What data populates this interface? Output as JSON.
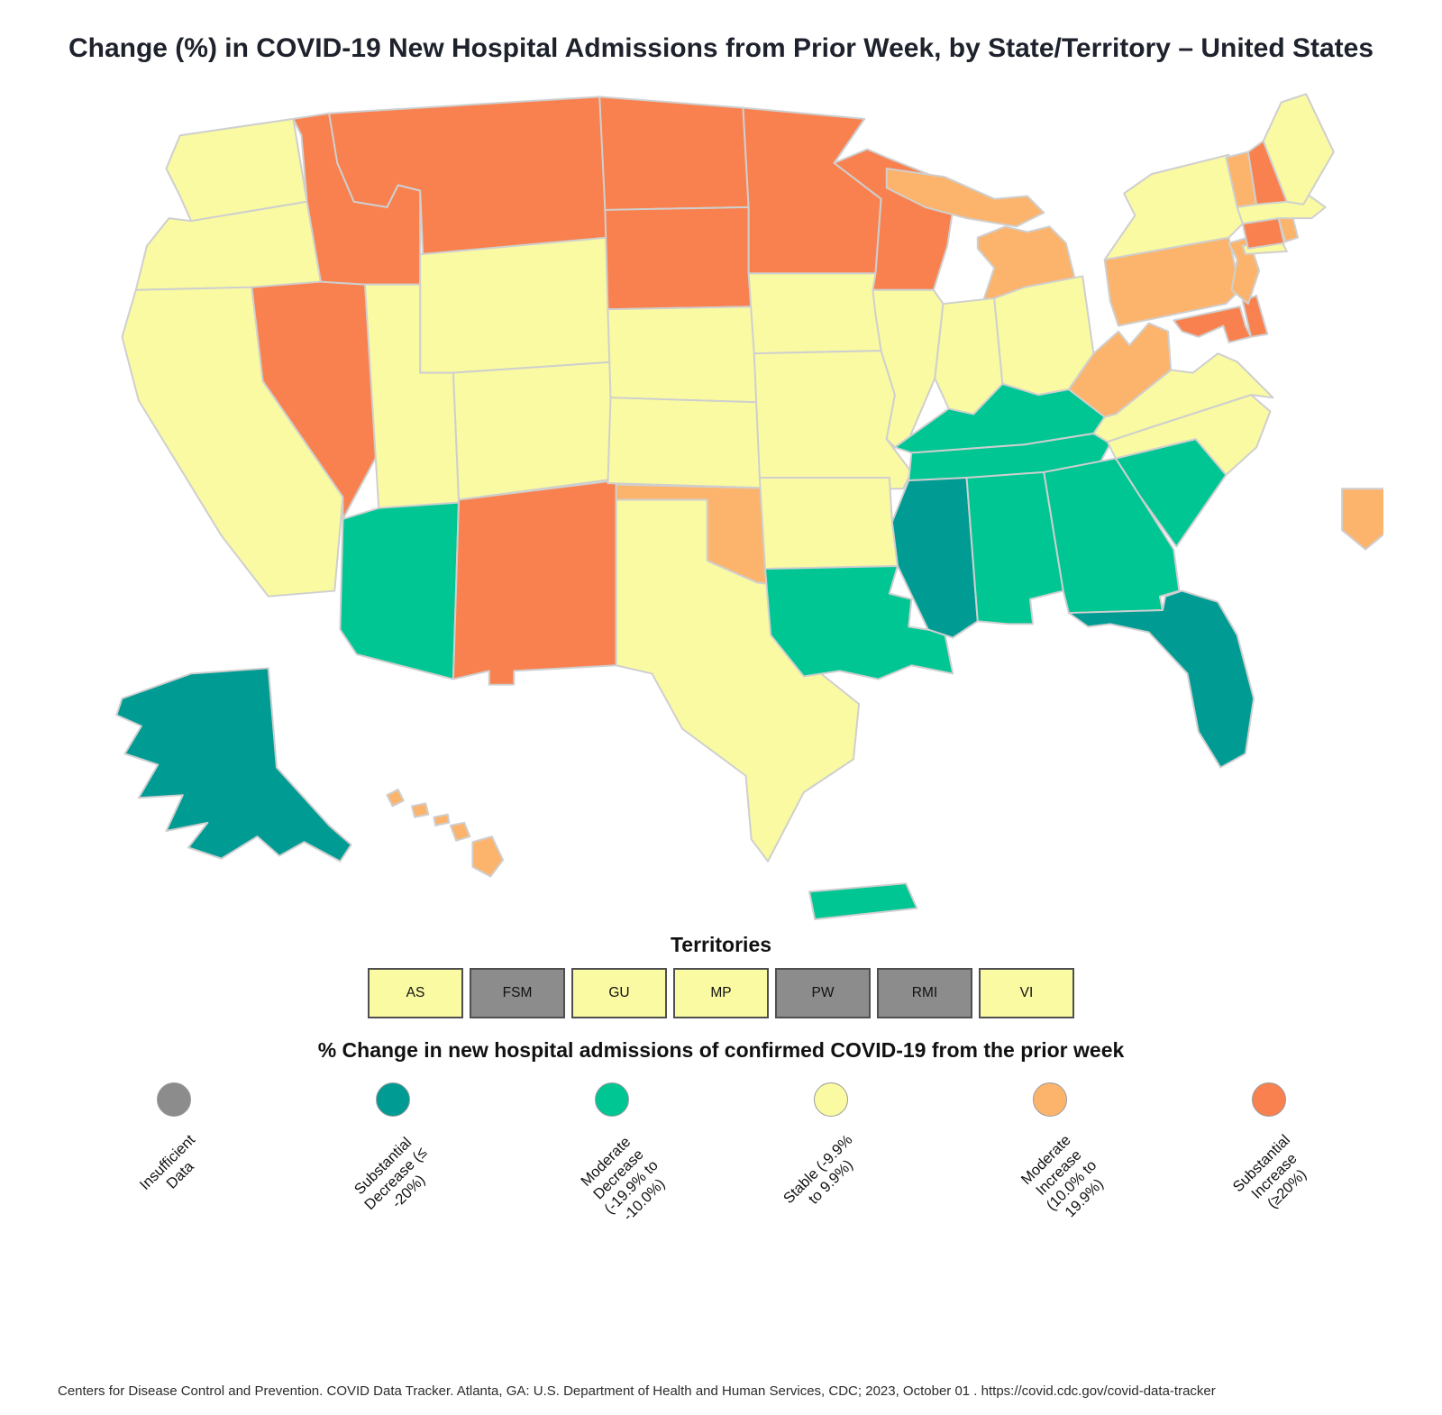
{
  "title": "Change (%) in COVID-19 New Hospital Admissions from Prior Week, by State/Territory – United States",
  "colors": {
    "insufficient": "#8C8C8C",
    "substantial_decrease": "#009C94",
    "moderate_decrease": "#00C694",
    "stable": "#FAFAA2",
    "moderate_increase": "#FCB46D",
    "substantial_increase": "#F8814F"
  },
  "map": {
    "border_color": "#CFCFCF",
    "states": [
      {
        "id": "WA",
        "name": "Washington",
        "category": "stable"
      },
      {
        "id": "OR",
        "name": "Oregon",
        "category": "stable"
      },
      {
        "id": "CA",
        "name": "California",
        "category": "stable"
      },
      {
        "id": "NV",
        "name": "Nevada",
        "category": "substantial_increase"
      },
      {
        "id": "ID",
        "name": "Idaho",
        "category": "substantial_increase"
      },
      {
        "id": "MT",
        "name": "Montana",
        "category": "substantial_increase"
      },
      {
        "id": "WY",
        "name": "Wyoming",
        "category": "stable"
      },
      {
        "id": "UT",
        "name": "Utah",
        "category": "stable"
      },
      {
        "id": "CO",
        "name": "Colorado",
        "category": "stable"
      },
      {
        "id": "AZ",
        "name": "Arizona",
        "category": "moderate_decrease"
      },
      {
        "id": "NM",
        "name": "New Mexico",
        "category": "substantial_increase"
      },
      {
        "id": "ND",
        "name": "North Dakota",
        "category": "substantial_increase"
      },
      {
        "id": "SD",
        "name": "South Dakota",
        "category": "substantial_increase"
      },
      {
        "id": "NE",
        "name": "Nebraska",
        "category": "stable"
      },
      {
        "id": "KS",
        "name": "Kansas",
        "category": "stable"
      },
      {
        "id": "OK",
        "name": "Oklahoma",
        "category": "moderate_increase"
      },
      {
        "id": "TX",
        "name": "Texas",
        "category": "stable"
      },
      {
        "id": "MN",
        "name": "Minnesota",
        "category": "substantial_increase"
      },
      {
        "id": "IA",
        "name": "Iowa",
        "category": "stable"
      },
      {
        "id": "MO",
        "name": "Missouri",
        "category": "stable"
      },
      {
        "id": "AR",
        "name": "Arkansas",
        "category": "stable"
      },
      {
        "id": "LA",
        "name": "Louisiana",
        "category": "moderate_decrease"
      },
      {
        "id": "WI",
        "name": "Wisconsin",
        "category": "substantial_increase"
      },
      {
        "id": "IL",
        "name": "Illinois",
        "category": "stable"
      },
      {
        "id": "MI",
        "name": "Michigan",
        "category": "moderate_increase"
      },
      {
        "id": "IN",
        "name": "Indiana",
        "category": "stable"
      },
      {
        "id": "OH",
        "name": "Ohio",
        "category": "stable"
      },
      {
        "id": "KY",
        "name": "Kentucky",
        "category": "moderate_decrease"
      },
      {
        "id": "TN",
        "name": "Tennessee",
        "category": "moderate_decrease"
      },
      {
        "id": "MS",
        "name": "Mississippi",
        "category": "substantial_decrease"
      },
      {
        "id": "AL",
        "name": "Alabama",
        "category": "moderate_decrease"
      },
      {
        "id": "GA",
        "name": "Georgia",
        "category": "moderate_decrease"
      },
      {
        "id": "FL",
        "name": "Florida",
        "category": "substantial_decrease"
      },
      {
        "id": "SC",
        "name": "South Carolina",
        "category": "moderate_decrease"
      },
      {
        "id": "NC",
        "name": "North Carolina",
        "category": "stable"
      },
      {
        "id": "VA",
        "name": "Virginia",
        "category": "stable"
      },
      {
        "id": "WV",
        "name": "West Virginia",
        "category": "moderate_increase"
      },
      {
        "id": "MD",
        "name": "Maryland",
        "category": "substantial_increase"
      },
      {
        "id": "DE",
        "name": "Delaware",
        "category": "substantial_increase"
      },
      {
        "id": "PA",
        "name": "Pennsylvania",
        "category": "moderate_increase"
      },
      {
        "id": "NJ",
        "name": "New Jersey",
        "category": "moderate_increase"
      },
      {
        "id": "NY",
        "name": "New York",
        "category": "stable"
      },
      {
        "id": "CT",
        "name": "Connecticut",
        "category": "substantial_increase"
      },
      {
        "id": "RI",
        "name": "Rhode Island",
        "category": "moderate_increase"
      },
      {
        "id": "MA",
        "name": "Massachusetts",
        "category": "stable"
      },
      {
        "id": "VT",
        "name": "Vermont",
        "category": "moderate_increase"
      },
      {
        "id": "NH",
        "name": "New Hampshire",
        "category": "substantial_increase"
      },
      {
        "id": "ME",
        "name": "Maine",
        "category": "stable"
      },
      {
        "id": "AK",
        "name": "Alaska",
        "category": "substantial_decrease"
      },
      {
        "id": "HI",
        "name": "Hawaii",
        "category": "moderate_increase"
      },
      {
        "id": "DC",
        "name": "District of Columbia",
        "category": "moderate_increase"
      },
      {
        "id": "PR",
        "name": "Puerto Rico",
        "category": "moderate_decrease"
      }
    ]
  },
  "territories": {
    "title": "Territories",
    "items": [
      {
        "code": "AS",
        "category": "stable"
      },
      {
        "code": "FSM",
        "category": "insufficient"
      },
      {
        "code": "GU",
        "category": "stable"
      },
      {
        "code": "MP",
        "category": "stable"
      },
      {
        "code": "PW",
        "category": "insufficient"
      },
      {
        "code": "RMI",
        "category": "insufficient"
      },
      {
        "code": "VI",
        "category": "stable"
      }
    ]
  },
  "legend": {
    "title": "% Change in new hospital admissions of confirmed COVID-19 from the prior week",
    "items": [
      {
        "key": "insufficient",
        "label": "Insufficient\nData"
      },
      {
        "key": "substantial_decrease",
        "label": "Substantial\nDecrease (≤\n-20%)"
      },
      {
        "key": "moderate_decrease",
        "label": "Moderate\nDecrease\n(-19.9% to\n-10.0%)"
      },
      {
        "key": "stable",
        "label": "Stable (-9.9%\nto 9.9%)"
      },
      {
        "key": "moderate_increase",
        "label": "Moderate\nIncrease\n(10.0% to\n19.9%)"
      },
      {
        "key": "substantial_increase",
        "label": "Substantial\nIncrease\n(≥20%)"
      }
    ]
  },
  "footer": "Centers for Disease Control and Prevention. COVID Data Tracker. Atlanta, GA: U.S. Department of Health and Human Services, CDC; 2023, October 01 . https://covid.cdc.gov/covid-data-tracker"
}
